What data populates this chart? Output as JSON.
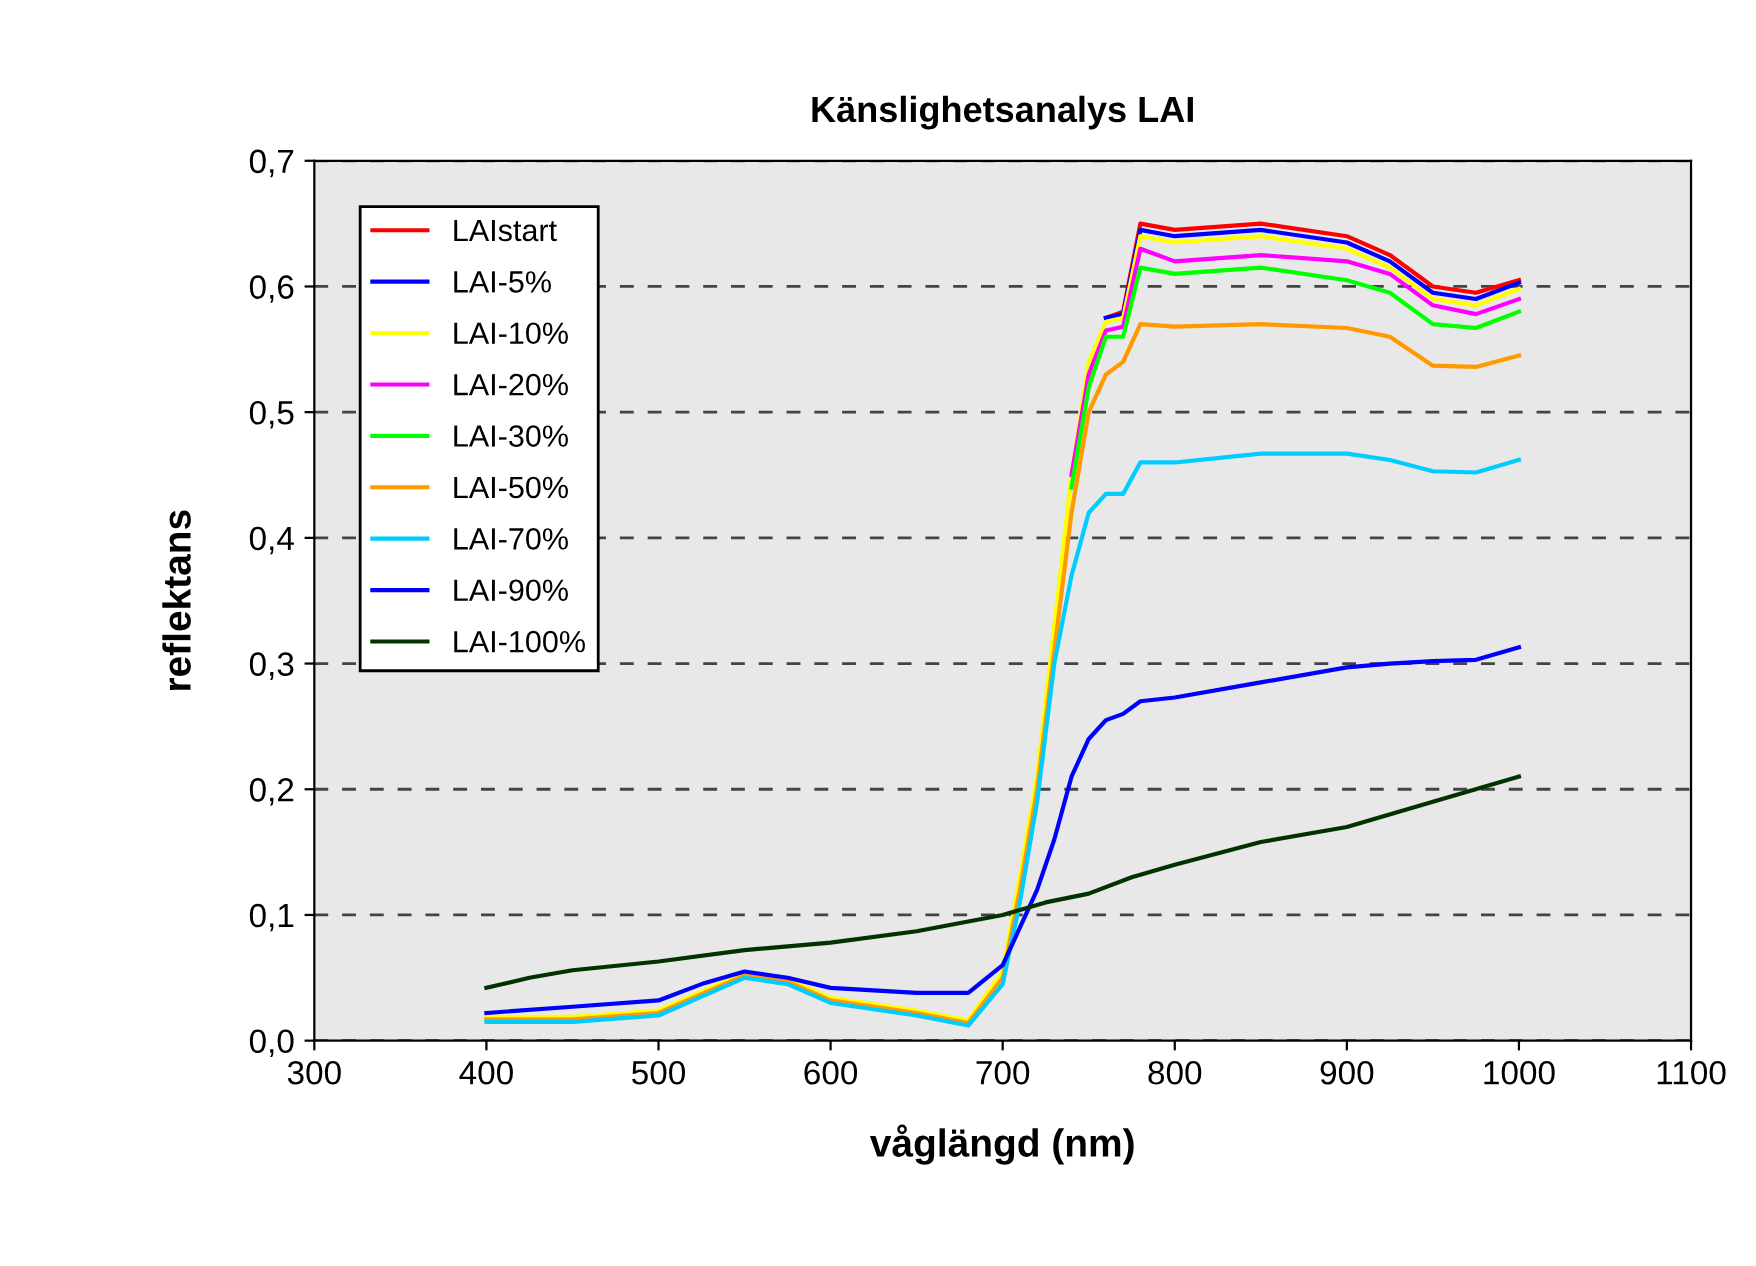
{
  "chart_data": {
    "type": "line",
    "title": "Känslighetsanalys LAI",
    "xlabel": "våglängd (nm)",
    "ylabel": "reflektans",
    "xlim": [
      300,
      1100
    ],
    "xticks": [
      300,
      400,
      500,
      600,
      700,
      800,
      900,
      1000,
      1100
    ],
    "ylim": [
      0,
      0.7
    ],
    "yticks": [
      {
        "value": 0,
        "label": "0,0"
      },
      {
        "value": 0.1,
        "label": "0,1"
      },
      {
        "value": 0.2,
        "label": "0,2"
      },
      {
        "value": 0.3,
        "label": "0,3"
      },
      {
        "value": 0.4,
        "label": "0,4"
      },
      {
        "value": 0.5,
        "label": "0,5"
      },
      {
        "value": 0.6,
        "label": "0,6"
      },
      {
        "value": 0.7,
        "label": "0,7"
      }
    ],
    "grid": "y",
    "legend": "top left",
    "marker": "none",
    "line_style": "solid",
    "x": [
      400,
      450,
      500,
      525,
      550,
      575,
      600,
      650,
      680,
      700,
      710,
      720,
      730,
      740,
      750,
      760,
      770,
      780,
      800,
      850,
      900,
      925,
      950,
      975,
      1000
    ],
    "series": [
      {
        "name": "LAIstart",
        "color": "#ff0000",
        "values": [
          null,
          null,
          null,
          null,
          null,
          null,
          null,
          null,
          null,
          null,
          null,
          null,
          null,
          null,
          null,
          0.575,
          0.58,
          0.65,
          0.645,
          0.65,
          0.64,
          0.625,
          0.6,
          0.595,
          0.605
        ]
      },
      {
        "name": "LAI-5%",
        "color": "#0000ff",
        "values": [
          null,
          null,
          null,
          null,
          null,
          null,
          null,
          null,
          null,
          null,
          null,
          null,
          null,
          null,
          null,
          0.575,
          0.578,
          0.645,
          0.64,
          0.645,
          0.635,
          0.62,
          0.595,
          0.59,
          0.603
        ]
      },
      {
        "name": "LAI-10%",
        "color": "#ffff00",
        "values": [
          0.019,
          0.019,
          0.024,
          0.039,
          0.054,
          0.049,
          0.034,
          0.024,
          0.016,
          0.055,
          0.13,
          0.21,
          0.33,
          0.45,
          0.54,
          0.572,
          0.575,
          0.64,
          0.635,
          0.64,
          0.63,
          0.615,
          0.59,
          0.585,
          0.598
        ]
      },
      {
        "name": "LAI-20%",
        "color": "#ff00ff",
        "values": [
          null,
          null,
          null,
          null,
          null,
          null,
          null,
          null,
          null,
          null,
          null,
          null,
          null,
          0.45,
          0.53,
          0.565,
          0.568,
          0.63,
          0.62,
          0.625,
          0.62,
          0.61,
          0.585,
          0.578,
          0.59
        ]
      },
      {
        "name": "LAI-30%",
        "color": "#00ff00",
        "values": [
          null,
          null,
          null,
          null,
          null,
          null,
          null,
          null,
          null,
          null,
          null,
          null,
          null,
          0.44,
          0.52,
          0.56,
          0.56,
          0.615,
          0.61,
          0.615,
          0.605,
          0.595,
          0.57,
          0.567,
          0.58
        ]
      },
      {
        "name": "LAI-50%",
        "color": "#ff9900",
        "values": [
          0.017,
          0.017,
          0.022,
          0.037,
          0.052,
          0.047,
          0.032,
          0.022,
          0.014,
          0.05,
          0.12,
          0.2,
          0.31,
          0.42,
          0.5,
          0.53,
          0.54,
          0.57,
          0.568,
          0.57,
          0.567,
          0.56,
          0.537,
          0.536,
          0.545
        ]
      },
      {
        "name": "LAI-70%",
        "color": "#00ccff",
        "values": [
          0.015,
          0.015,
          0.02,
          0.035,
          0.05,
          0.045,
          0.03,
          0.02,
          0.012,
          0.045,
          0.11,
          0.19,
          0.3,
          0.37,
          0.42,
          0.435,
          0.435,
          0.46,
          0.46,
          0.467,
          0.467,
          0.462,
          0.453,
          0.452,
          0.462
        ]
      },
      {
        "name": "LAI-90%",
        "color": "#0000ff",
        "values": [
          0.022,
          0.027,
          0.032,
          0.045,
          0.055,
          0.05,
          0.042,
          0.038,
          0.038,
          0.06,
          0.09,
          0.12,
          0.16,
          0.21,
          0.24,
          0.255,
          0.26,
          0.27,
          0.273,
          0.285,
          0.297,
          0.3,
          0.302,
          0.303,
          0.313
        ]
      },
      {
        "name": "LAI-100%",
        "color": "#003300",
        "x": [
          400,
          425,
          450,
          500,
          550,
          600,
          650,
          700,
          725,
          750,
          775,
          800,
          850,
          900,
          950,
          1000
        ],
        "values": [
          0.042,
          0.05,
          0.056,
          0.063,
          0.072,
          0.078,
          0.087,
          0.1,
          0.11,
          0.117,
          0.13,
          0.14,
          0.158,
          0.17,
          0.19,
          0.21
        ]
      }
    ]
  }
}
